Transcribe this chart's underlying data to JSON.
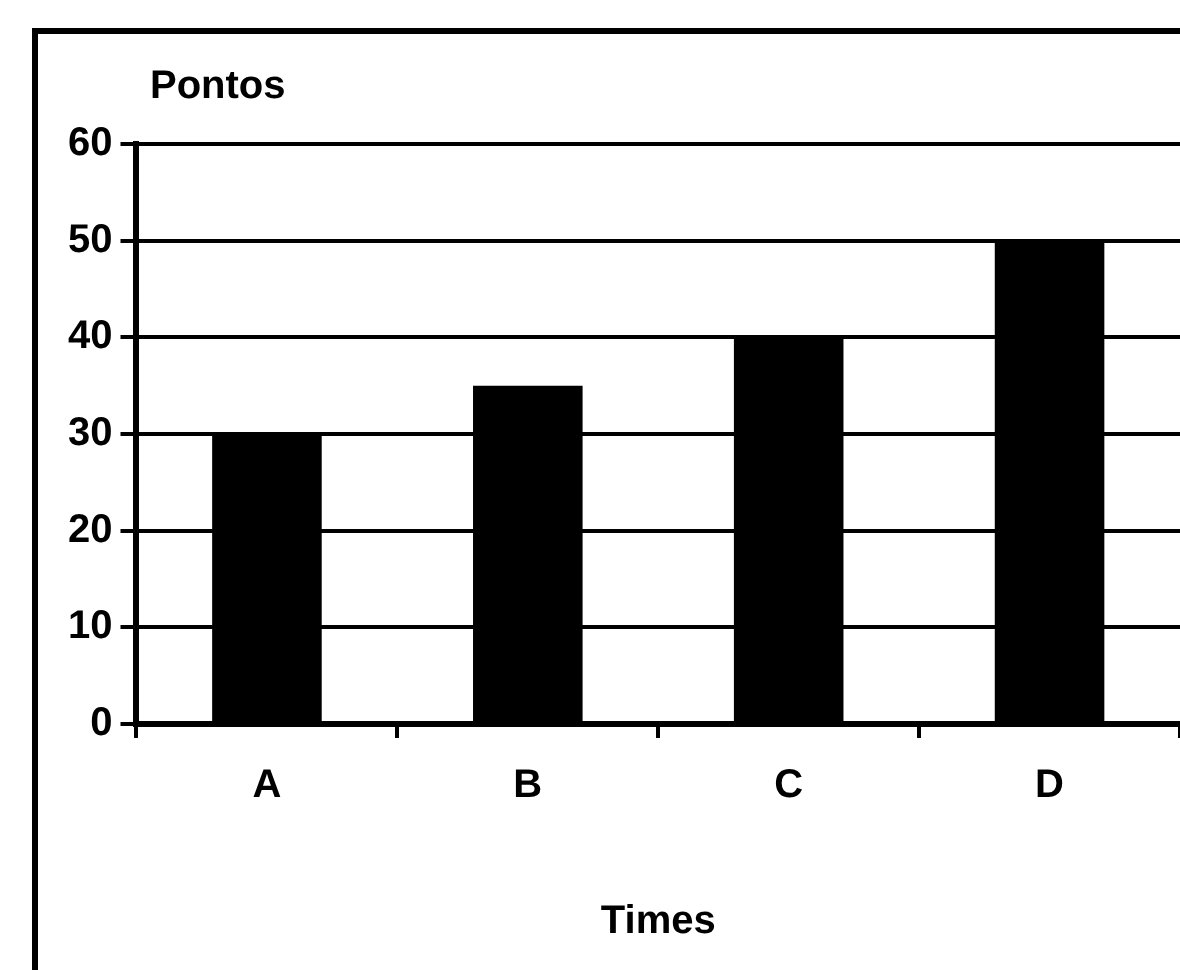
{
  "chart_data": {
    "type": "bar",
    "ylabel": "Pontos",
    "xlabel": "Times",
    "categories": [
      "A",
      "B",
      "C",
      "D"
    ],
    "values": [
      30,
      35,
      40,
      50
    ],
    "color": "#000000",
    "ylim": [
      0,
      60
    ],
    "yticks": [
      0,
      10,
      20,
      30,
      40,
      50,
      60
    ],
    "grid": "y",
    "legend": false
  }
}
